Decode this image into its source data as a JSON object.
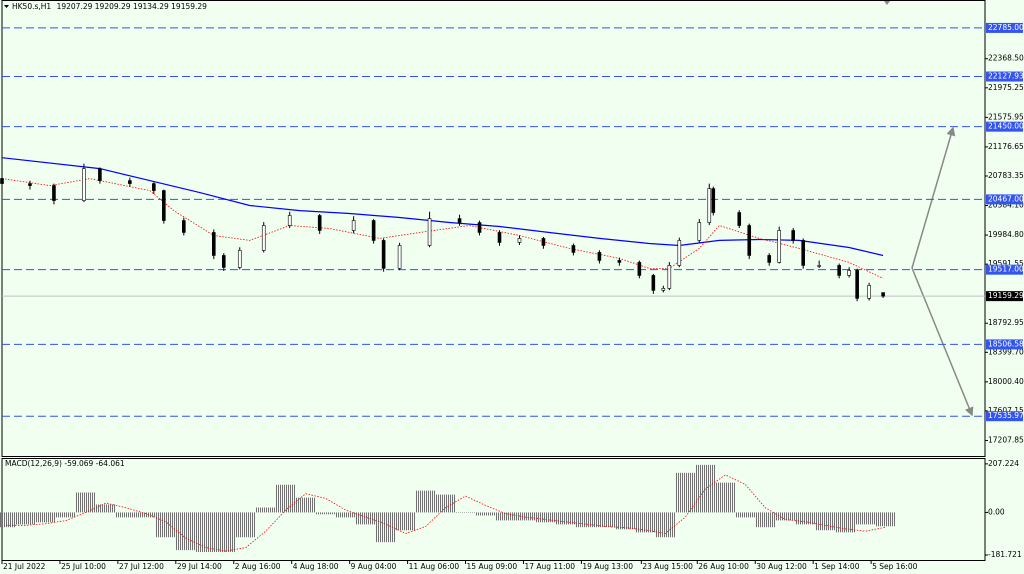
{
  "chart_data": [
    {
      "type": "candlestick",
      "title": "HK50.s,H1",
      "x": [
        0,
        14,
        26,
        41,
        49,
        64,
        76,
        81,
        91,
        106,
        111,
        119,
        131,
        144,
        159,
        176,
        186,
        191,
        199,
        214,
        229,
        239,
        249,
        259,
        271,
        286,
        299,
        309,
        319,
        326,
        331,
        334,
        339,
        349,
        354,
        356,
        369,
        374,
        384,
        389,
        396,
        401,
        409,
        419,
        424,
        428,
        434,
        441
      ],
      "open": [
        20750,
        20681,
        20654,
        20451,
        20883,
        20721,
        20681,
        20586,
        20181,
        20020,
        19709,
        19547,
        19777,
        20114,
        20249,
        20047,
        20181,
        19912,
        19534,
        19844,
        20208,
        20154,
        20020,
        19885,
        19939,
        19844,
        19750,
        19642,
        19615,
        19439,
        19237,
        19264,
        19574,
        19912,
        20154,
        20613,
        20289,
        20114,
        19709,
        19615,
        20047,
        19912,
        19574,
        19574,
        19439,
        19507,
        19129,
        19207.29
      ],
      "high": [
        20820,
        20720,
        20680,
        20950,
        20900,
        20760,
        20700,
        20600,
        20220,
        20060,
        19740,
        19820,
        20160,
        20300,
        20270,
        20240,
        20200,
        19940,
        19880,
        20300,
        20260,
        20180,
        20050,
        19980,
        19960,
        19870,
        19780,
        19680,
        19640,
        19460,
        19300,
        19620,
        19950,
        20200,
        20680,
        20640,
        20320,
        20140,
        19740,
        20100,
        20080,
        19940,
        19640,
        19600,
        19550,
        19530,
        19340,
        19209.29
      ],
      "low": [
        20640,
        20600,
        20400,
        20430,
        20680,
        20640,
        20540,
        20140,
        19980,
        19660,
        19500,
        19520,
        19750,
        20080,
        20000,
        20010,
        19870,
        19490,
        19510,
        19820,
        20110,
        19980,
        19840,
        19850,
        19800,
        19710,
        19600,
        19570,
        19400,
        19190,
        19210,
        19240,
        19550,
        19880,
        20120,
        20250,
        20080,
        19660,
        19570,
        19600,
        19870,
        19530,
        19540,
        19400,
        19410,
        19090,
        19100,
        19134.29
      ],
      "close": [
        20681,
        20654,
        20451,
        20883,
        20721,
        20681,
        20586,
        20181,
        20020,
        19709,
        19547,
        19777,
        20114,
        20249,
        20047,
        20181,
        19912,
        19534,
        19844,
        20208,
        20154,
        20020,
        19885,
        19939,
        19844,
        19750,
        19642,
        19615,
        19439,
        19237,
        19264,
        19574,
        19912,
        20154,
        20613,
        20289,
        20114,
        19709,
        19615,
        20047,
        19912,
        19574,
        19574,
        19439,
        19507,
        19129,
        19305,
        19159.29
      ],
      "lines": [
        {
          "color": "#0000ff",
          "style": "solid",
          "x": [
            0,
            49,
            74,
            99,
            124,
            149,
            174,
            199,
            224,
            249,
            274,
            299,
            324,
            339,
            359,
            379,
            399,
            424,
            441
          ],
          "values": [
            21031,
            20883,
            20721,
            20559,
            20384,
            20316,
            20276,
            20222,
            20154,
            20100,
            20020,
            19939,
            19871,
            19844,
            19912,
            19925,
            19912,
            19817,
            19709
          ]
        },
        {
          "color": "#ff0000",
          "style": "dotted",
          "x": [
            0,
            24,
            44,
            74,
            86,
            106,
            124,
            144,
            164,
            189,
            209,
            234,
            259,
            284,
            309,
            324,
            334,
            349,
            359,
            379,
            399,
            424,
            441
          ],
          "values": [
            20748,
            20654,
            20748,
            20586,
            20316,
            19979,
            19912,
            20114,
            20074,
            19939,
            20020,
            20114,
            19979,
            19804,
            19669,
            19534,
            19534,
            19804,
            20114,
            19939,
            19804,
            19615,
            19399
          ]
        }
      ],
      "levels": [
        {
          "value": 22785,
          "label": "22785.00"
        },
        {
          "value": 22127.93,
          "label": "22127.93"
        },
        {
          "value": 21450,
          "label": "21450.00"
        },
        {
          "value": 20467,
          "label": "20467.00"
        },
        {
          "value": 19517,
          "label": "19517.00"
        },
        {
          "value": 18506.58,
          "label": "18506.58"
        },
        {
          "value": 17535.97,
          "label": "17535.97"
        }
      ],
      "level_color": "#3355ee",
      "xlim": [
        0,
        492
      ],
      "ylim": [
        16998,
        23149
      ],
      "yticks": [
        {
          "value": 22368.5,
          "label": "22368.50"
        },
        21975.25,
        21575.95,
        21176.65,
        20783.35,
        {
          "value": 20384.1,
          "label": "20384.10"
        },
        {
          "value": 19984.8,
          "label": "19984.80"
        },
        19591.55,
        18792.95,
        {
          "value": 18399.7,
          "label": "18399.70"
        },
        {
          "value": 18000.4,
          "label": "18000.40"
        },
        17607.15,
        17207.85
      ],
      "xticks": [
        {
          "value": 0,
          "label": "21 Jul 2022"
        },
        {
          "value": 29,
          "label": "25 Jul 10:00"
        },
        {
          "value": 58,
          "label": "27 Jul 12:00"
        },
        {
          "value": 87,
          "label": "29 Jul 14:00"
        },
        {
          "value": 116,
          "label": "2 Aug 16:00"
        },
        {
          "value": 145,
          "label": "4 Aug 18:00"
        },
        {
          "value": 174,
          "label": "9 Aug 04:00"
        },
        {
          "value": 203,
          "label": "11 Aug 06:00"
        },
        {
          "value": 232,
          "label": "15 Aug 09:00"
        },
        {
          "value": 261,
          "label": "17 Aug 11:00"
        },
        {
          "value": 290,
          "label": "19 Aug 13:00"
        },
        {
          "value": 320,
          "label": "23 Aug 15:00"
        },
        {
          "value": 348,
          "label": "26 Aug 10:00"
        },
        {
          "value": 377,
          "label": "30 Aug 12:00"
        },
        {
          "value": 406,
          "label": "1 Sep 14:00"
        },
        {
          "value": 435,
          "label": "5 Sep 16:00"
        }
      ]
    },
    {
      "type": "macd",
      "title": "MACD(12,26,9)",
      "x": [
        2,
        12,
        22,
        32,
        42,
        52,
        62,
        72,
        82,
        92,
        102,
        112,
        122,
        132,
        142,
        152,
        162,
        172,
        182,
        192,
        202,
        212,
        222,
        232,
        242,
        252,
        262,
        272,
        282,
        292,
        302,
        312,
        322,
        332,
        342,
        352,
        362,
        372,
        382,
        392,
        402,
        412,
        422,
        432,
        442
      ],
      "values": [
        -63,
        -51,
        -42,
        -21,
        85,
        34,
        -21,
        -21,
        -106,
        -161,
        -169,
        -169,
        -106,
        21,
        118,
        63,
        -8,
        -21,
        -51,
        -127,
        -76,
        93,
        76,
        0,
        -13,
        -34,
        -34,
        -42,
        -51,
        -63,
        -63,
        -72,
        -85,
        -106,
        169,
        203,
        127,
        -21,
        -63,
        -34,
        -51,
        -76,
        -85,
        -51,
        -59.069
      ],
      "signal": [
        -55,
        -55,
        -48,
        -35,
        0,
        40,
        20,
        -5,
        -40,
        -110,
        -150,
        -165,
        -150,
        -80,
        10,
        80,
        60,
        10,
        -20,
        -50,
        -90,
        -60,
        20,
        70,
        30,
        -5,
        -20,
        -30,
        -40,
        -50,
        -60,
        -65,
        -75,
        -90,
        -20,
        100,
        160,
        120,
        20,
        -30,
        -40,
        -55,
        -70,
        -80,
        -64.061
      ],
      "color": "#808080",
      "signal_color": "#ff0000",
      "xlim": [
        0,
        492
      ],
      "ylim": [
        -203,
        228
      ],
      "yticks": [
        207.224,
        {
          "value": 0,
          "label": "0.00"
        },
        -181.721
      ]
    }
  ]
}
